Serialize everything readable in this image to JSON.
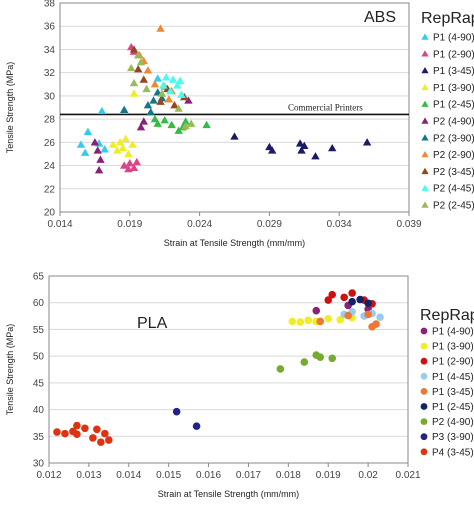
{
  "chart_data": [
    {
      "type": "scatter",
      "title": "ABS",
      "legend_title": "RepRaps",
      "xlabel": "Strain at Tensile Strength (mm/mm)",
      "ylabel": "Tensile Strength (MPa)",
      "xlim": [
        0.014,
        0.039
      ],
      "ylim": [
        20,
        38
      ],
      "xticks": [
        "0.014",
        "0.019",
        "0.024",
        "0.029",
        "0.034",
        "0.039"
      ],
      "yticks": [
        "20",
        "22",
        "24",
        "26",
        "28",
        "30",
        "32",
        "34",
        "36",
        "38"
      ],
      "marker": "triangle",
      "legend_position": "right",
      "reference_line": {
        "label": "Commercial Printers",
        "y": 28.4
      },
      "series": [
        {
          "name": "P1 (4-90)",
          "color": "#33ccee",
          "points": [
            [
              0.0155,
              25.8
            ],
            [
              0.0158,
              25.1
            ],
            [
              0.016,
              26.9
            ],
            [
              0.0168,
              25.9
            ],
            [
              0.017,
              28.7
            ],
            [
              0.0172,
              25.4
            ],
            [
              0.021,
              31.5
            ]
          ]
        },
        {
          "name": "P1 (2-90)",
          "color": "#dd4488",
          "points": [
            [
              0.0186,
              24.0
            ],
            [
              0.0189,
              23.7
            ],
            [
              0.019,
              24.2
            ],
            [
              0.0193,
              23.8
            ],
            [
              0.0195,
              24.3
            ],
            [
              0.0191,
              34.2
            ],
            [
              0.0193,
              33.8
            ]
          ]
        },
        {
          "name": "P1 (3-45)",
          "color": "#1a1a66",
          "points": [
            [
              0.0265,
              26.5
            ],
            [
              0.029,
              25.6
            ],
            [
              0.0292,
              25.3
            ],
            [
              0.0312,
              25.9
            ],
            [
              0.0313,
              25.3
            ],
            [
              0.0315,
              25.7
            ],
            [
              0.0323,
              24.8
            ],
            [
              0.0335,
              25.5
            ],
            [
              0.036,
              26.0
            ]
          ]
        },
        {
          "name": "P1 (3-90)",
          "color": "#eeee22",
          "points": [
            [
              0.0178,
              25.8
            ],
            [
              0.0181,
              25.3
            ],
            [
              0.0183,
              26.0
            ],
            [
              0.0185,
              25.5
            ],
            [
              0.0187,
              26.3
            ],
            [
              0.0189,
              25.0
            ],
            [
              0.0192,
              25.8
            ],
            [
              0.0193,
              30.2
            ]
          ]
        },
        {
          "name": "P1 (2-45)",
          "color": "#33bb44",
          "points": [
            [
              0.0208,
              28.0
            ],
            [
              0.021,
              27.6
            ],
            [
              0.0215,
              27.9
            ],
            [
              0.022,
              27.5
            ],
            [
              0.0225,
              27.0
            ],
            [
              0.0228,
              27.3
            ],
            [
              0.023,
              27.8
            ],
            [
              0.0245,
              27.5
            ]
          ]
        },
        {
          "name": "P2 (4-90)",
          "color": "#882277",
          "points": [
            [
              0.0165,
              26.0
            ],
            [
              0.0167,
              25.3
            ],
            [
              0.0168,
              23.6
            ],
            [
              0.0169,
              24.5
            ],
            [
              0.0198,
              27.3
            ],
            [
              0.02,
              27.8
            ],
            [
              0.0232,
              29.6
            ]
          ]
        },
        {
          "name": "P2 (3-90)",
          "color": "#117788",
          "points": [
            [
              0.0186,
              28.8
            ],
            [
              0.0203,
              29.2
            ],
            [
              0.0205,
              28.6
            ],
            [
              0.0207,
              29.6
            ],
            [
              0.021,
              30.3
            ],
            [
              0.0213,
              29.8
            ]
          ]
        },
        {
          "name": "P2 (2-90)",
          "color": "#ee8833",
          "points": [
            [
              0.0197,
              33.5
            ],
            [
              0.02,
              33.0
            ],
            [
              0.0203,
              32.2
            ],
            [
              0.0208,
              31.0
            ],
            [
              0.0212,
              35.8
            ],
            [
              0.0215,
              30.8
            ],
            [
              0.0218,
              29.7
            ],
            [
              0.022,
              30.4
            ]
          ]
        },
        {
          "name": "P2 (3-45)",
          "color": "#994422",
          "points": [
            [
              0.0193,
              34.0
            ],
            [
              0.0196,
              32.3
            ],
            [
              0.02,
              31.4
            ],
            [
              0.0212,
              29.5
            ],
            [
              0.0217,
              30.6
            ],
            [
              0.0222,
              29.2
            ],
            [
              0.0229,
              29.9
            ]
          ]
        },
        {
          "name": "P2 (4-45)",
          "color": "#44ffee",
          "points": [
            [
              0.0214,
              30.9
            ],
            [
              0.0216,
              31.6
            ],
            [
              0.0219,
              30.4
            ],
            [
              0.0221,
              31.4
            ],
            [
              0.0224,
              30.9
            ],
            [
              0.0226,
              31.3
            ],
            [
              0.0227,
              30.1
            ]
          ]
        },
        {
          "name": "P2 (2-45)",
          "color": "#99bb55",
          "points": [
            [
              0.0191,
              32.4
            ],
            [
              0.0193,
              31.1
            ],
            [
              0.0196,
              33.5
            ],
            [
              0.0198,
              32.9
            ],
            [
              0.0202,
              30.6
            ],
            [
              0.0213,
              30.2
            ],
            [
              0.0225,
              28.9
            ],
            [
              0.023,
              27.4
            ],
            [
              0.0234,
              27.6
            ]
          ]
        }
      ]
    },
    {
      "type": "scatter",
      "title": "PLA",
      "legend_title": "RepRaps",
      "xlabel": "Strain at Tensile Strength (mm/mm)",
      "ylabel": "Tensile Strength (MPa)",
      "xlim": [
        0.012,
        0.021
      ],
      "ylim": [
        30,
        65
      ],
      "xticks": [
        "0.012",
        "0.013",
        "0.014",
        "0.015",
        "0.016",
        "0.017",
        "0.018",
        "0.019",
        "0.02",
        "0.021"
      ],
      "yticks": [
        "30",
        "35",
        "40",
        "45",
        "50",
        "55",
        "60",
        "65"
      ],
      "marker": "circle",
      "legend_position": "right",
      "series": [
        {
          "name": "P1 (4-90)",
          "color": "#882277",
          "points": [
            [
              0.0187,
              58.5
            ],
            [
              0.0195,
              59.5
            ],
            [
              0.02,
              58.8
            ]
          ]
        },
        {
          "name": "P1 (3-90)",
          "color": "#eeee22",
          "points": [
            [
              0.0181,
              56.5
            ],
            [
              0.0183,
              56.4
            ],
            [
              0.0185,
              56.7
            ],
            [
              0.0187,
              56.5
            ],
            [
              0.019,
              57.0
            ],
            [
              0.0193,
              56.8
            ],
            [
              0.0196,
              57.2
            ]
          ]
        },
        {
          "name": "P1 (2-90)",
          "color": "#cc1111",
          "points": [
            [
              0.019,
              60.5
            ],
            [
              0.0191,
              61.5
            ],
            [
              0.0194,
              61.0
            ],
            [
              0.0196,
              61.8
            ],
            [
              0.0199,
              60.5
            ],
            [
              0.0201,
              59.8
            ]
          ]
        },
        {
          "name": "P1 (4-45)",
          "color": "#99ccee",
          "points": [
            [
              0.0194,
              57.8
            ],
            [
              0.0196,
              58.3
            ],
            [
              0.0199,
              57.5
            ],
            [
              0.0201,
              58.0
            ],
            [
              0.0203,
              57.3
            ]
          ]
        },
        {
          "name": "P1 (3-45)",
          "color": "#ee7733",
          "points": [
            [
              0.0188,
              56.5
            ],
            [
              0.0195,
              57.6
            ],
            [
              0.02,
              57.8
            ],
            [
              0.0201,
              55.5
            ],
            [
              0.0202,
              56.0
            ]
          ]
        },
        {
          "name": "P1 (2-45)",
          "color": "#112266",
          "points": [
            [
              0.0196,
              60.2
            ],
            [
              0.0198,
              60.6
            ],
            [
              0.02,
              59.9
            ]
          ]
        },
        {
          "name": "P2 (4-90)",
          "color": "#77aa33",
          "points": [
            [
              0.0178,
              47.6
            ],
            [
              0.0184,
              48.9
            ],
            [
              0.0187,
              50.2
            ],
            [
              0.0188,
              49.8
            ],
            [
              0.0191,
              49.6
            ]
          ]
        },
        {
          "name": "P3 (3-90)",
          "color": "#222288",
          "points": [
            [
              0.0152,
              39.6
            ],
            [
              0.0157,
              36.9
            ]
          ]
        },
        {
          "name": "P4 (3-45)",
          "color": "#dd3311",
          "points": [
            [
              0.0122,
              35.8
            ],
            [
              0.0124,
              35.5
            ],
            [
              0.0126,
              35.9
            ],
            [
              0.0127,
              35.4
            ],
            [
              0.0127,
              37.0
            ],
            [
              0.0129,
              36.5
            ],
            [
              0.0131,
              34.7
            ],
            [
              0.0132,
              36.3
            ],
            [
              0.0133,
              33.9
            ],
            [
              0.0134,
              35.5
            ],
            [
              0.0135,
              34.3
            ]
          ]
        }
      ]
    }
  ]
}
